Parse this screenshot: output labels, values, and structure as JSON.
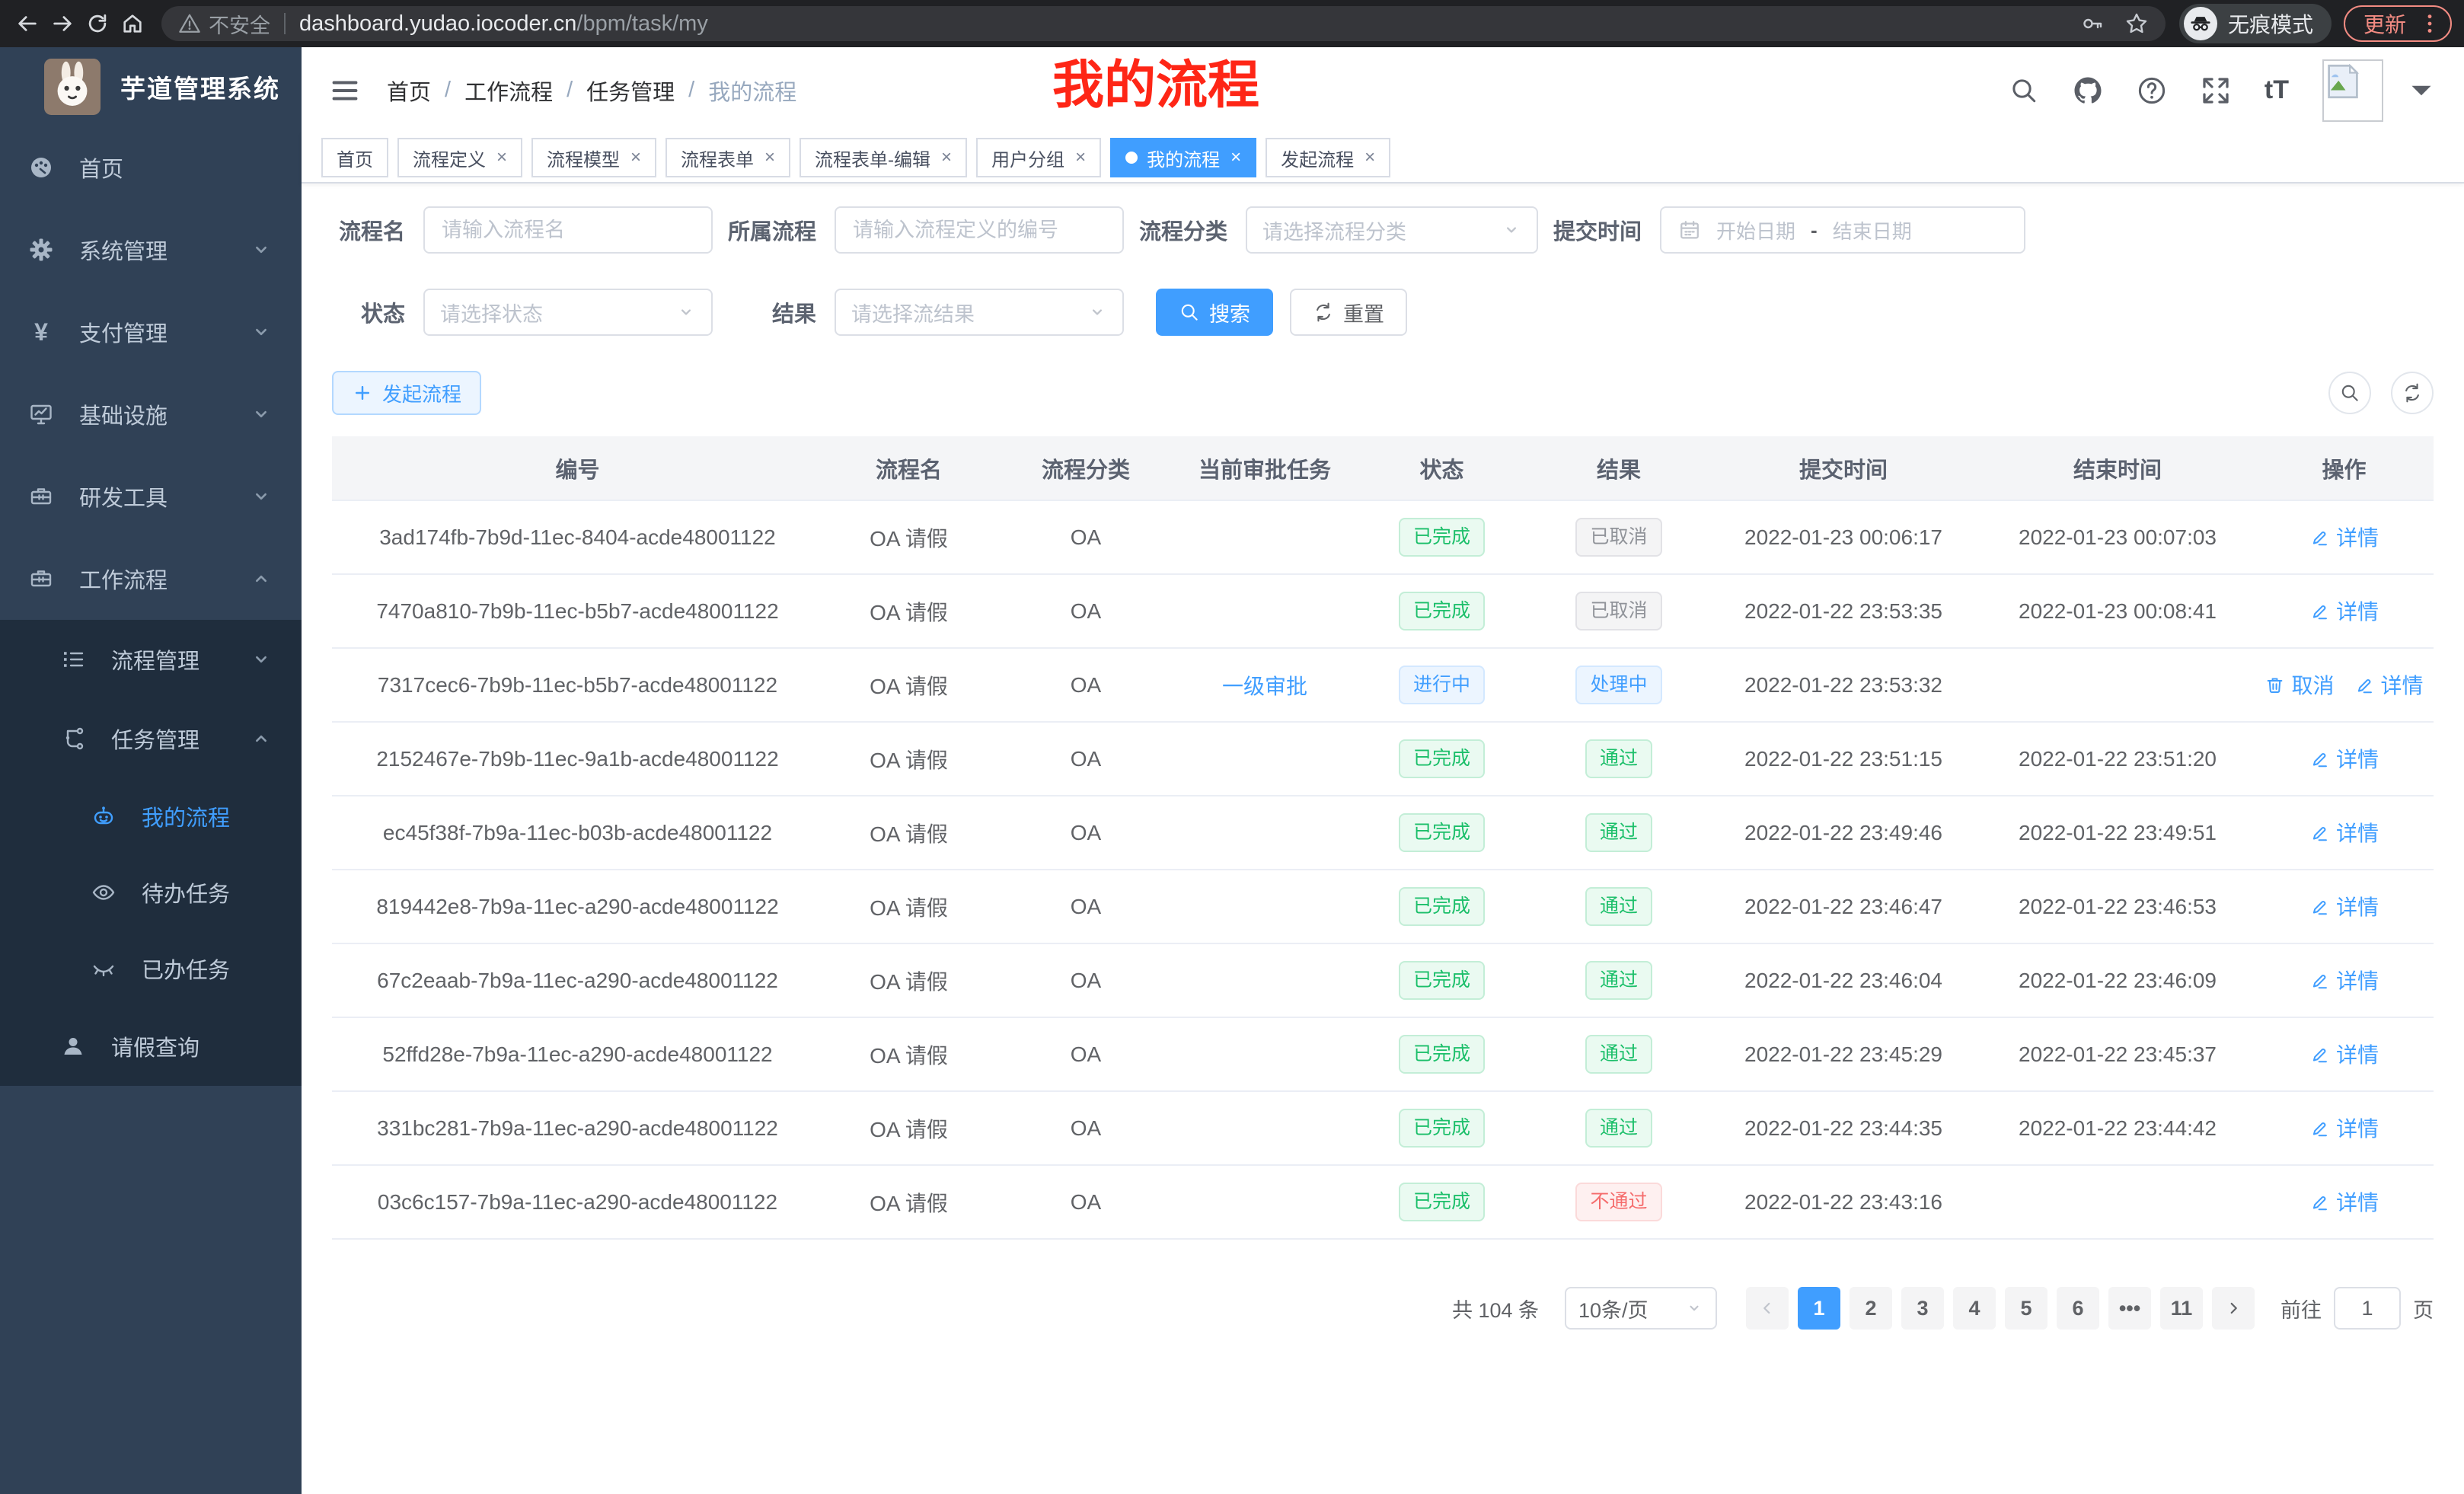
{
  "browser": {
    "security_label": "不安全",
    "url_host": "dashboard.yudao.iocoder.cn",
    "url_path": "/bpm/task/my",
    "incognito_label": "无痕模式",
    "update_label": "更新"
  },
  "colors": {
    "accent_blue": "#409eff",
    "sidebar_bg": "#304156",
    "submenu_bg": "#1f2d3d",
    "success_green": "#1cbf6a",
    "danger_red": "#f56c6c",
    "info_grey": "#909399",
    "annotation_red": "#fe2616",
    "update_salmon": "#f28b82"
  },
  "sidebar": {
    "app_title": "芋道管理系统",
    "items": [
      {
        "key": "home",
        "label": "首页",
        "icon": "dashboard-icon",
        "level": 1,
        "sub": false,
        "chevron": null,
        "active": false
      },
      {
        "key": "system-mgmt",
        "label": "系统管理",
        "icon": "gear-icon",
        "level": 1,
        "sub": false,
        "chevron": "down",
        "active": false
      },
      {
        "key": "pay-mgmt",
        "label": "支付管理",
        "icon": "yen-icon",
        "level": 1,
        "sub": false,
        "chevron": "down",
        "active": false
      },
      {
        "key": "infrastructure",
        "label": "基础设施",
        "icon": "monitor-icon",
        "level": 1,
        "sub": false,
        "chevron": "down",
        "active": false
      },
      {
        "key": "dev-tools",
        "label": "研发工具",
        "icon": "toolbox-icon",
        "level": 1,
        "sub": false,
        "chevron": "down",
        "active": false
      },
      {
        "key": "workflow",
        "label": "工作流程",
        "icon": "briefcase-icon",
        "level": 1,
        "sub": false,
        "chevron": "up",
        "active": false
      },
      {
        "key": "process-mgmt",
        "label": "流程管理",
        "icon": "list-icon",
        "level": 2,
        "sub": true,
        "chevron": "down",
        "active": false
      },
      {
        "key": "task-mgmt",
        "label": "任务管理",
        "icon": "tree-icon",
        "level": 2,
        "sub": true,
        "chevron": "up",
        "active": false
      },
      {
        "key": "my-process",
        "label": "我的流程",
        "icon": "robot-icon",
        "level": 3,
        "sub": true,
        "chevron": null,
        "active": true
      },
      {
        "key": "todo-tasks",
        "label": "待办任务",
        "icon": "eye-open-icon",
        "level": 3,
        "sub": true,
        "chevron": null,
        "active": false
      },
      {
        "key": "done-tasks",
        "label": "已办任务",
        "icon": "eye-closed-icon",
        "level": 3,
        "sub": true,
        "chevron": null,
        "active": false
      },
      {
        "key": "leave-query",
        "label": "请假查询",
        "icon": "user-icon",
        "level": 2,
        "sub": true,
        "chevron": null,
        "active": false
      }
    ]
  },
  "header": {
    "breadcrumb": [
      "首页",
      "工作流程",
      "任务管理",
      "我的流程"
    ],
    "annotation": "我的流程"
  },
  "tabs": [
    {
      "key": "home",
      "label": "首页",
      "closable": false,
      "active": false
    },
    {
      "key": "process-definition",
      "label": "流程定义",
      "closable": true,
      "active": false
    },
    {
      "key": "process-model",
      "label": "流程模型",
      "closable": true,
      "active": false
    },
    {
      "key": "process-form",
      "label": "流程表单",
      "closable": true,
      "active": false
    },
    {
      "key": "process-form-edit",
      "label": "流程表单-编辑",
      "closable": true,
      "active": false
    },
    {
      "key": "user-group",
      "label": "用户分组",
      "closable": true,
      "active": false
    },
    {
      "key": "my-process",
      "label": "我的流程",
      "closable": true,
      "active": true
    },
    {
      "key": "start-process",
      "label": "发起流程",
      "closable": true,
      "active": false
    }
  ],
  "filters": {
    "name_label": "流程名",
    "name_placeholder": "请输入流程名",
    "definition_label": "所属流程",
    "definition_placeholder": "请输入流程定义的编号",
    "category_label": "流程分类",
    "category_placeholder": "请选择流程分类",
    "time_label": "提交时间",
    "start_placeholder": "开始日期",
    "range_separator": "-",
    "end_placeholder": "结束日期",
    "status_label": "状态",
    "status_placeholder": "请选择状态",
    "result_label": "结果",
    "result_placeholder": "请选择流结果",
    "search_label": "搜索",
    "reset_label": "重置"
  },
  "toolbar": {
    "create_label": "发起流程"
  },
  "table": {
    "columns": [
      "编号",
      "流程名",
      "流程分类",
      "当前审批任务",
      "状态",
      "结果",
      "提交时间",
      "结束时间",
      "操作"
    ],
    "rows": [
      {
        "id": "3ad174fb-7b9d-11ec-8404-acde48001122",
        "name": "OA 请假",
        "category": "OA",
        "task": "",
        "status": "已完成",
        "status_type": "success",
        "result": "已取消",
        "result_type": "info",
        "submit": "2022-01-23 00:06:17",
        "end": "2022-01-23 00:07:03",
        "actions": [
          {
            "label": "详情",
            "icon": "edit-icon"
          }
        ]
      },
      {
        "id": "7470a810-7b9b-11ec-b5b7-acde48001122",
        "name": "OA 请假",
        "category": "OA",
        "task": "",
        "status": "已完成",
        "status_type": "success",
        "result": "已取消",
        "result_type": "info",
        "submit": "2022-01-22 23:53:35",
        "end": "2022-01-23 00:08:41",
        "actions": [
          {
            "label": "详情",
            "icon": "edit-icon"
          }
        ]
      },
      {
        "id": "7317cec6-7b9b-11ec-b5b7-acde48001122",
        "name": "OA 请假",
        "category": "OA",
        "task": "一级审批",
        "status": "进行中",
        "status_type": "primary",
        "result": "处理中",
        "result_type": "primary",
        "submit": "2022-01-22 23:53:32",
        "end": "",
        "actions": [
          {
            "label": "取消",
            "icon": "delete-icon"
          },
          {
            "label": "详情",
            "icon": "edit-icon"
          }
        ]
      },
      {
        "id": "2152467e-7b9b-11ec-9a1b-acde48001122",
        "name": "OA 请假",
        "category": "OA",
        "task": "",
        "status": "已完成",
        "status_type": "success",
        "result": "通过",
        "result_type": "success",
        "submit": "2022-01-22 23:51:15",
        "end": "2022-01-22 23:51:20",
        "actions": [
          {
            "label": "详情",
            "icon": "edit-icon"
          }
        ]
      },
      {
        "id": "ec45f38f-7b9a-11ec-b03b-acde48001122",
        "name": "OA 请假",
        "category": "OA",
        "task": "",
        "status": "已完成",
        "status_type": "success",
        "result": "通过",
        "result_type": "success",
        "submit": "2022-01-22 23:49:46",
        "end": "2022-01-22 23:49:51",
        "actions": [
          {
            "label": "详情",
            "icon": "edit-icon"
          }
        ]
      },
      {
        "id": "819442e8-7b9a-11ec-a290-acde48001122",
        "name": "OA 请假",
        "category": "OA",
        "task": "",
        "status": "已完成",
        "status_type": "success",
        "result": "通过",
        "result_type": "success",
        "submit": "2022-01-22 23:46:47",
        "end": "2022-01-22 23:46:53",
        "actions": [
          {
            "label": "详情",
            "icon": "edit-icon"
          }
        ]
      },
      {
        "id": "67c2eaab-7b9a-11ec-a290-acde48001122",
        "name": "OA 请假",
        "category": "OA",
        "task": "",
        "status": "已完成",
        "status_type": "success",
        "result": "通过",
        "result_type": "success",
        "submit": "2022-01-22 23:46:04",
        "end": "2022-01-22 23:46:09",
        "actions": [
          {
            "label": "详情",
            "icon": "edit-icon"
          }
        ]
      },
      {
        "id": "52ffd28e-7b9a-11ec-a290-acde48001122",
        "name": "OA 请假",
        "category": "OA",
        "task": "",
        "status": "已完成",
        "status_type": "success",
        "result": "通过",
        "result_type": "success",
        "submit": "2022-01-22 23:45:29",
        "end": "2022-01-22 23:45:37",
        "actions": [
          {
            "label": "详情",
            "icon": "edit-icon"
          }
        ]
      },
      {
        "id": "331bc281-7b9a-11ec-a290-acde48001122",
        "name": "OA 请假",
        "category": "OA",
        "task": "",
        "status": "已完成",
        "status_type": "success",
        "result": "通过",
        "result_type": "success",
        "submit": "2022-01-22 23:44:35",
        "end": "2022-01-22 23:44:42",
        "actions": [
          {
            "label": "详情",
            "icon": "edit-icon"
          }
        ]
      },
      {
        "id": "03c6c157-7b9a-11ec-a290-acde48001122",
        "name": "OA 请假",
        "category": "OA",
        "task": "",
        "status": "已完成",
        "status_type": "success",
        "result": "不通过",
        "result_type": "danger",
        "submit": "2022-01-22 23:43:16",
        "end": "",
        "actions": [
          {
            "label": "详情",
            "icon": "edit-icon"
          }
        ]
      }
    ]
  },
  "pagination": {
    "total_label": "共 104 条",
    "page_size_label": "10条/页",
    "pages": [
      "1",
      "2",
      "3",
      "4",
      "5",
      "6",
      "•••",
      "11"
    ],
    "active_page": "1",
    "goto_label": "前往",
    "goto_value": "1",
    "goto_suffix": "页"
  }
}
